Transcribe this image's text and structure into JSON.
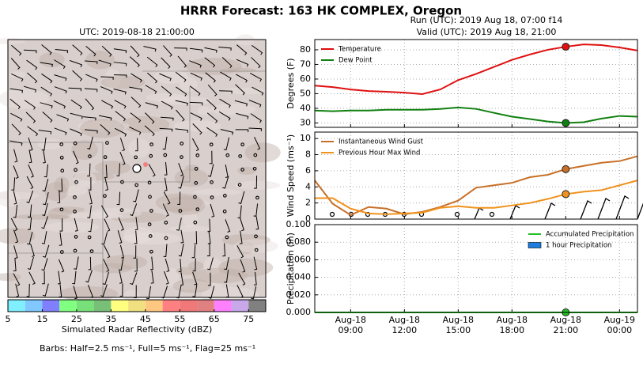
{
  "title": "HRRR Forecast: 163 HK COMPLEX, Oregon",
  "map": {
    "title": "UTC: 2019-08-18 21:00:00",
    "barbs_caption": "Barbs: Half=2.5 ms⁻¹, Full=5 ms⁻¹, Flag=25 ms⁻¹"
  },
  "chart_data": [
    {
      "type": "colorbar",
      "xlabel": "Simulated Radar Reflectivity (dBZ)",
      "bins": [
        5,
        10,
        15,
        20,
        25,
        30,
        35,
        40,
        45,
        50,
        55,
        60,
        65,
        70,
        75,
        80
      ],
      "colors": [
        "#80f0ff",
        "#80c8ff",
        "#8080ff",
        "#80ff80",
        "#78e078",
        "#78c078",
        "#ffff80",
        "#f0e080",
        "#ffc880",
        "#ff8080",
        "#f07878",
        "#e08080",
        "#ff80ff",
        "#c8a8e8",
        "#808080"
      ],
      "xlim": [
        5,
        80
      ],
      "xticks": [
        5,
        15,
        25,
        35,
        45,
        55,
        65,
        75
      ]
    },
    {
      "type": "line",
      "title": "Run (UTC): 2019 Aug 18, 07:00 f14",
      "subtitle": "Valid (UTC): 2019 Aug 18, 21:00",
      "ylabel": "Degrees (F)",
      "legend": "upper left",
      "grid": true,
      "highlight": "08-18 21:00",
      "x": [
        "08-18 07:00",
        "08-18 08:00",
        "08-18 09:00",
        "08-18 10:00",
        "08-18 11:00",
        "08-18 12:00",
        "08-18 13:00",
        "08-18 14:00",
        "08-18 15:00",
        "08-18 16:00",
        "08-18 17:00",
        "08-18 18:00",
        "08-18 19:00",
        "08-18 20:00",
        "08-18 21:00",
        "08-18 22:00",
        "08-18 23:00",
        "08-19 00:00",
        "08-19 01:00"
      ],
      "series": [
        {
          "name": "Temperature",
          "color": "#e01010",
          "values": [
            55.5,
            54.5,
            52.9,
            51.8,
            51.3,
            50.7,
            49.7,
            52.9,
            59.3,
            63.5,
            68.3,
            73.1,
            76.8,
            80,
            82.1,
            83.7,
            83.2,
            81.6,
            79.5
          ]
        },
        {
          "name": "Dew Point",
          "color": "#108010",
          "values": [
            38.5,
            38,
            38.5,
            38.5,
            39,
            39,
            39,
            39.6,
            40.6,
            39.6,
            36.9,
            34.3,
            32.7,
            31,
            30,
            30.5,
            33,
            34.8,
            34.3
          ]
        }
      ],
      "xlim": [
        "08-18 07:00",
        "08-19 01:00"
      ],
      "xticks": [
        "08-18 09:00",
        "08-18 12:00",
        "08-18 15:00",
        "08-18 18:00",
        "08-18 21:00",
        "08-19 00:00"
      ],
      "ylim": [
        27,
        87
      ],
      "yticks": [
        30,
        40,
        50,
        60,
        70,
        80
      ]
    },
    {
      "type": "line",
      "ylabel": "Wind Speed (ms⁻¹)",
      "legend": "upper left",
      "grid": true,
      "highlight": "08-18 21:00",
      "x": [
        "08-18 07:00",
        "08-18 08:00",
        "08-18 09:00",
        "08-18 10:00",
        "08-18 11:00",
        "08-18 12:00",
        "08-18 13:00",
        "08-18 14:00",
        "08-18 15:00",
        "08-18 16:00",
        "08-18 17:00",
        "08-18 18:00",
        "08-18 19:00",
        "08-18 20:00",
        "08-18 21:00",
        "08-18 22:00",
        "08-18 23:00",
        "08-19 00:00",
        "08-19 01:00"
      ],
      "series": [
        {
          "name": "Instantaneous Wind Gust",
          "color": "#c87028",
          "values": [
            4.8,
            1.9,
            0.5,
            1.5,
            1.3,
            0.6,
            0.9,
            1.5,
            2.3,
            3.9,
            4.2,
            4.5,
            5.2,
            5.5,
            6.2,
            6.6,
            7.0,
            7.2,
            7.8
          ]
        },
        {
          "name": "Previous Hour Max Wind",
          "color": "#f0921e",
          "values": [
            2.6,
            2.6,
            1.3,
            0.7,
            0.6,
            0.7,
            0.8,
            1.4,
            1.6,
            1.4,
            1.4,
            1.7,
            2.0,
            2.5,
            3.1,
            3.4,
            3.6,
            4.2,
            4.8
          ]
        }
      ],
      "xlim": [
        "08-18 07:00",
        "08-19 01:00"
      ],
      "xticks": [
        "08-18 09:00",
        "08-18 12:00",
        "08-18 15:00",
        "08-18 18:00",
        "08-18 21:00",
        "08-19 00:00"
      ],
      "ylim": [
        0,
        10.8
      ],
      "yticks": [
        0,
        2,
        4,
        6,
        8,
        10
      ]
    },
    {
      "type": "line",
      "ylabel": "Precipitation (in)",
      "legend": "upper right",
      "grid": true,
      "highlight": "08-18 21:00",
      "x": [
        "08-18 07:00",
        "08-18 08:00",
        "08-18 09:00",
        "08-18 10:00",
        "08-18 11:00",
        "08-18 12:00",
        "08-18 13:00",
        "08-18 14:00",
        "08-18 15:00",
        "08-18 16:00",
        "08-18 17:00",
        "08-18 18:00",
        "08-18 19:00",
        "08-18 20:00",
        "08-18 21:00",
        "08-18 22:00",
        "08-18 23:00",
        "08-19 00:00",
        "08-19 01:00"
      ],
      "series": [
        {
          "name": "Accumulated Precipitation",
          "color": "#20c020",
          "values": [
            0,
            0,
            0,
            0,
            0,
            0,
            0,
            0,
            0,
            0,
            0,
            0,
            0,
            0,
            0,
            0,
            0,
            0,
            0
          ]
        },
        {
          "name": "1 hour Precipitation",
          "type": "bar",
          "color": "#1e7ee0",
          "values": [
            0,
            0,
            0,
            0,
            0,
            0,
            0,
            0,
            0,
            0,
            0,
            0,
            0,
            0,
            0,
            0,
            0,
            0,
            0
          ]
        }
      ],
      "xlim": [
        "08-18 07:00",
        "08-19 01:00"
      ],
      "xticks": [
        {
          "value": "08-18 09:00",
          "label": [
            "Aug-18",
            "09:00"
          ]
        },
        {
          "value": "08-18 12:00",
          "label": [
            "Aug-18",
            "12:00"
          ]
        },
        {
          "value": "08-18 15:00",
          "label": [
            "Aug-18",
            "15:00"
          ]
        },
        {
          "value": "08-18 18:00",
          "label": [
            "Aug-18",
            "18:00"
          ]
        },
        {
          "value": "08-18 21:00",
          "label": [
            "Aug-18",
            "21:00"
          ]
        },
        {
          "value": "08-19 00:00",
          "label": [
            "Aug-19",
            "00:00"
          ]
        }
      ],
      "ylim": [
        0,
        0.1
      ],
      "yticks": [
        {
          "value": 0,
          "label": "0.000"
        },
        {
          "value": 0.02,
          "label": "0.020"
        },
        {
          "value": 0.04,
          "label": "0.040"
        },
        {
          "value": 0.06,
          "label": "0.060"
        },
        {
          "value": 0.08,
          "label": "0.080"
        },
        {
          "value": 0.1,
          "label": "0.100"
        }
      ]
    }
  ]
}
